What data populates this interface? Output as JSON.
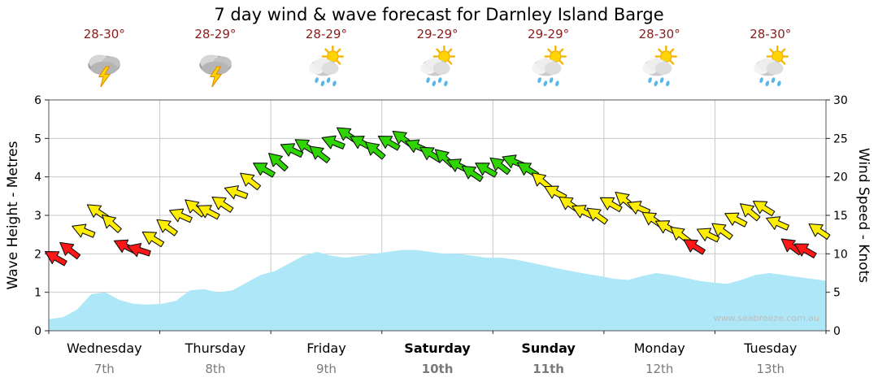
{
  "title": "7 day wind & wave forecast for Darnley Island Barge",
  "watermark": "www.seabreeze.com.au",
  "colors": {
    "wave_fill": "#aee7f8",
    "grid": "#c9c9c9",
    "frame": "#555555",
    "temp_text": "#8b1a1a",
    "date_text": "#7a7a7a",
    "wind_red": "#ff1616",
    "wind_yellow": "#ffee00",
    "wind_green": "#2fd500"
  },
  "days": [
    {
      "name": "Wednesday",
      "date": "7th",
      "temp": "28-30°",
      "icon": "storm-icon",
      "bold": false
    },
    {
      "name": "Thursday",
      "date": "8th",
      "temp": "28-29°",
      "icon": "storm-icon",
      "bold": false
    },
    {
      "name": "Friday",
      "date": "9th",
      "temp": "28-29°",
      "icon": "sun-shower-icon",
      "bold": false
    },
    {
      "name": "Saturday",
      "date": "10th",
      "temp": "29-29°",
      "icon": "sun-shower-icon",
      "bold": true
    },
    {
      "name": "Sunday",
      "date": "11th",
      "temp": "29-29°",
      "icon": "sun-shower-icon",
      "bold": true
    },
    {
      "name": "Monday",
      "date": "12th",
      "temp": "28-30°",
      "icon": "sun-shower-icon",
      "bold": false
    },
    {
      "name": "Tuesday",
      "date": "13th",
      "temp": "28-30°",
      "icon": "sun-shower-icon",
      "bold": false
    }
  ],
  "chart_data": {
    "type": "area+wind-arrows",
    "categories": [
      "Wednesday 7th",
      "Thursday 8th",
      "Friday 9th",
      "Saturday 10th",
      "Sunday 11th",
      "Monday 12th",
      "Tuesday 13th"
    ],
    "points_per_day": 8,
    "y_left": {
      "label": "Wave Height - Metres",
      "min": 0,
      "max": 6,
      "step": 1
    },
    "y_right": {
      "label": "Wind Speed - Knots",
      "min": 0,
      "max": 30,
      "step": 5
    },
    "wave_height_m": [
      0.3,
      0.35,
      0.55,
      0.95,
      1.0,
      0.8,
      0.7,
      0.68,
      0.7,
      0.78,
      1.05,
      1.08,
      1.0,
      1.05,
      1.25,
      1.45,
      1.55,
      1.75,
      1.95,
      2.05,
      1.95,
      1.9,
      1.95,
      2.0,
      2.05,
      2.1,
      2.1,
      2.05,
      2.0,
      2.0,
      1.95,
      1.9,
      1.9,
      1.85,
      1.78,
      1.7,
      1.62,
      1.55,
      1.48,
      1.42,
      1.35,
      1.32,
      1.42,
      1.5,
      1.45,
      1.38,
      1.3,
      1.25,
      1.22,
      1.32,
      1.45,
      1.5,
      1.45,
      1.4,
      1.35,
      1.3
    ],
    "wind_speed_knots": [
      9.5,
      10.5,
      13,
      15.5,
      14,
      11,
      10.5,
      12,
      13.5,
      15,
      16,
      15.5,
      16.5,
      18,
      19.5,
      21,
      22,
      23.5,
      24,
      23,
      24.5,
      25.5,
      24.5,
      23.5,
      24.5,
      25,
      24,
      23,
      22.5,
      21.5,
      20.5,
      21,
      21.5,
      22,
      21,
      19.5,
      18,
      16.5,
      15.5,
      15,
      16.5,
      17,
      16,
      14.5,
      13.5,
      12.5,
      11,
      12.5,
      13,
      14.5,
      15.5,
      16,
      14,
      11,
      10.5,
      13
    ],
    "wind_dir_deg": [
      210,
      218,
      202,
      214,
      222,
      206,
      198,
      212,
      216,
      204,
      220,
      208,
      214,
      200,
      218,
      210,
      222,
      206,
      212,
      218,
      202,
      214,
      208,
      220,
      210,
      216,
      204,
      212,
      222,
      206,
      214,
      210,
      218,
      202,
      212,
      220,
      208,
      214,
      206,
      216,
      210,
      220,
      204,
      214,
      208,
      218,
      212,
      206,
      216,
      208,
      220,
      212,
      204,
      216,
      210,
      214
    ],
    "wind_color_thresholds": [
      {
        "max": 11.5,
        "color": "red"
      },
      {
        "max": 20,
        "color": "yellow"
      },
      {
        "max": 99,
        "color": "green"
      }
    ]
  }
}
